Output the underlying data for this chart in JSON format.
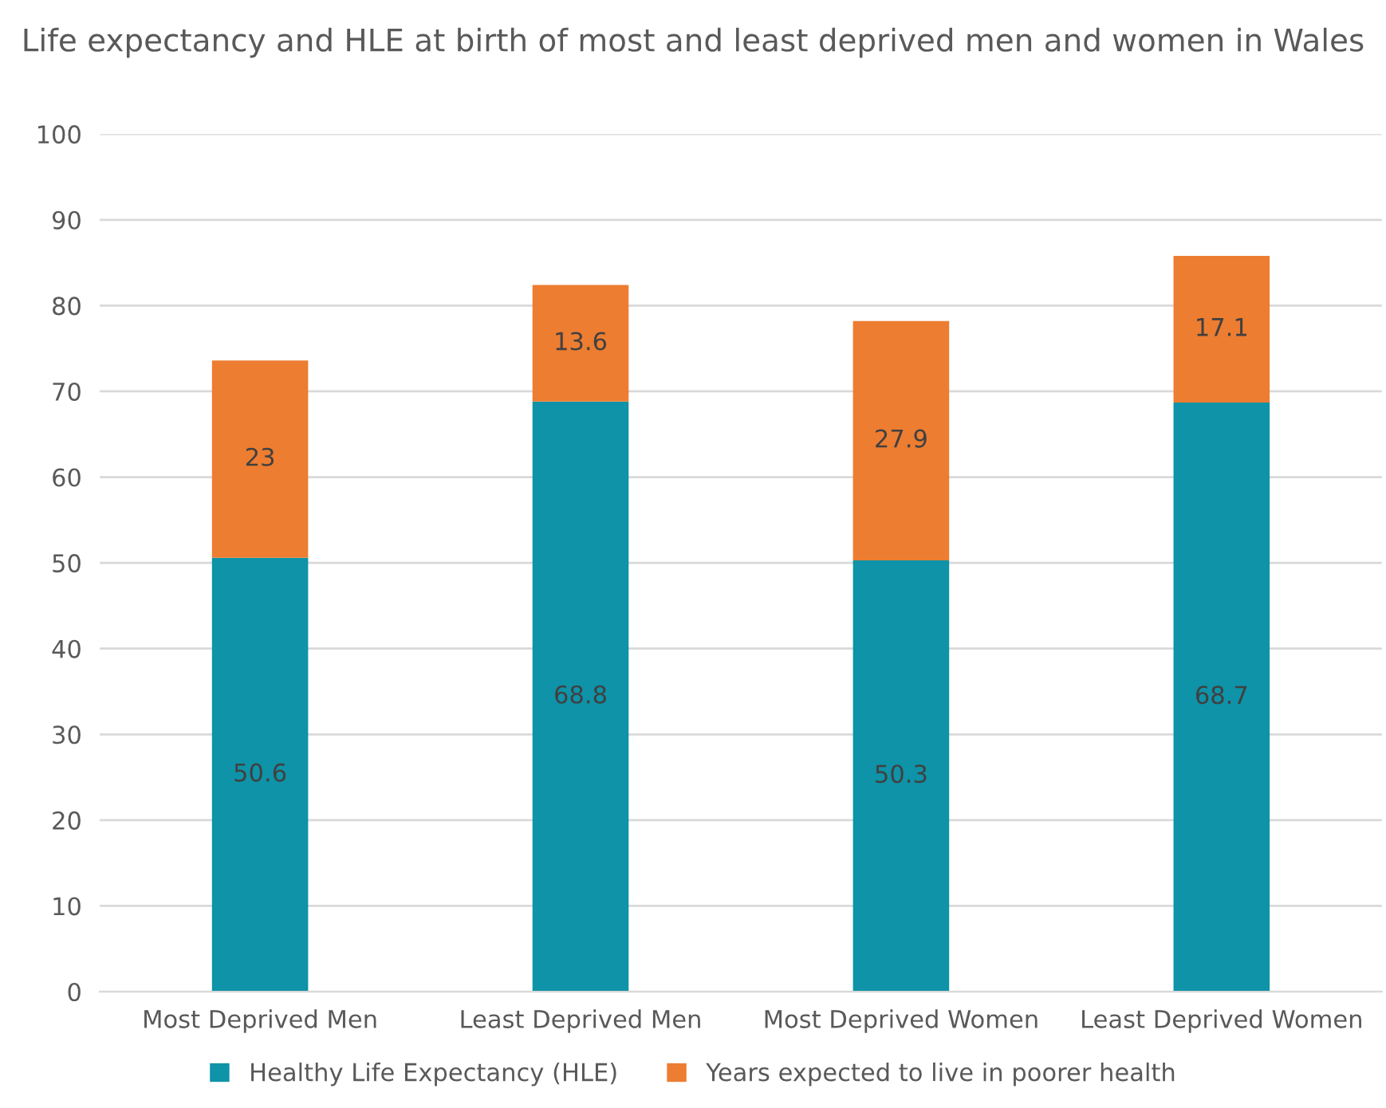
{
  "chart_data": {
    "type": "bar",
    "title": "Life expectancy and HLE at birth of most and least deprived men and women in Wales",
    "categories": [
      "Most Deprived Men",
      "Least Deprived Men",
      "Most Deprived Women",
      "Least Deprived Women"
    ],
    "series": [
      {
        "name": "Healthy Life Expectancy (HLE)",
        "color": "#0e93a8",
        "values": [
          50.6,
          68.8,
          50.3,
          68.7
        ]
      },
      {
        "name": "Years expected to live in poorer health",
        "color": "#ed7d31",
        "values": [
          23,
          13.6,
          27.9,
          17.1
        ]
      }
    ],
    "stacked": true,
    "data_labels": true,
    "ylim": [
      0,
      100
    ],
    "yticks": [
      0,
      10,
      20,
      30,
      40,
      50,
      60,
      70,
      80,
      90,
      100
    ],
    "grid": "y",
    "legend": "bottom"
  }
}
